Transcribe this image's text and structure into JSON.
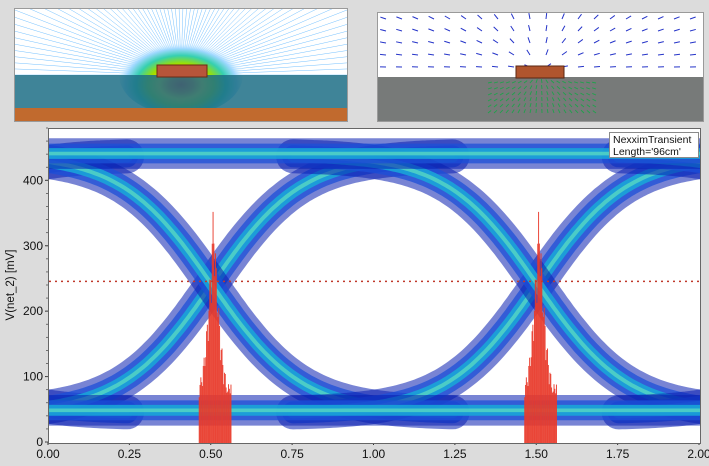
{
  "top_left_panel": {
    "name": "field magnitude cross-section",
    "colors": [
      "#ff2000",
      "#ff9a00",
      "#ffe800",
      "#7be000",
      "#00c8a8",
      "#3aa6ff",
      "#c9b9ff"
    ]
  },
  "top_right_panel": {
    "name": "field vector cross-section",
    "colors": [
      "#2433c8",
      "#1fa24b",
      "#6a6a6a",
      "#8a4a2a"
    ]
  },
  "legend": {
    "line1": "NexximTransient",
    "line2": "Length='96cm'"
  },
  "chart_data": {
    "type": "scatter",
    "title": "",
    "xlabel": "",
    "ylabel": "V(net_2) [mV]",
    "xlim": [
      0.0,
      2.0
    ],
    "ylim": [
      0,
      480
    ],
    "x_ticks": [
      "0.00",
      "0.25",
      "0.50",
      "0.75",
      "1.00",
      "1.25",
      "1.50",
      "1.75",
      "2.00"
    ],
    "y_ticks": [
      "0",
      "100",
      "200",
      "300",
      "400"
    ],
    "grid": false,
    "threshold_mV": 247,
    "eye_crossings": [
      {
        "x": 0.5,
        "y_mV": 247
      },
      {
        "x": 1.5,
        "y_mV": 247
      }
    ],
    "high_level_mV": [
      415,
      470
    ],
    "low_level_mV": [
      15,
      85
    ],
    "jitter_histograms": [
      {
        "x_start": 0.46,
        "x_end": 0.56,
        "peak_mV": 370,
        "peak_x": 0.505
      },
      {
        "x_start": 1.46,
        "x_end": 1.56,
        "peak_mV": 370,
        "peak_x": 1.505
      }
    ],
    "colors": {
      "eye_outer": "#0a1fb0",
      "eye_inner": "#19a8d8",
      "eye_core": "#5fe0c0",
      "histogram": "#e8392a",
      "threshold": "#c0392b"
    }
  }
}
